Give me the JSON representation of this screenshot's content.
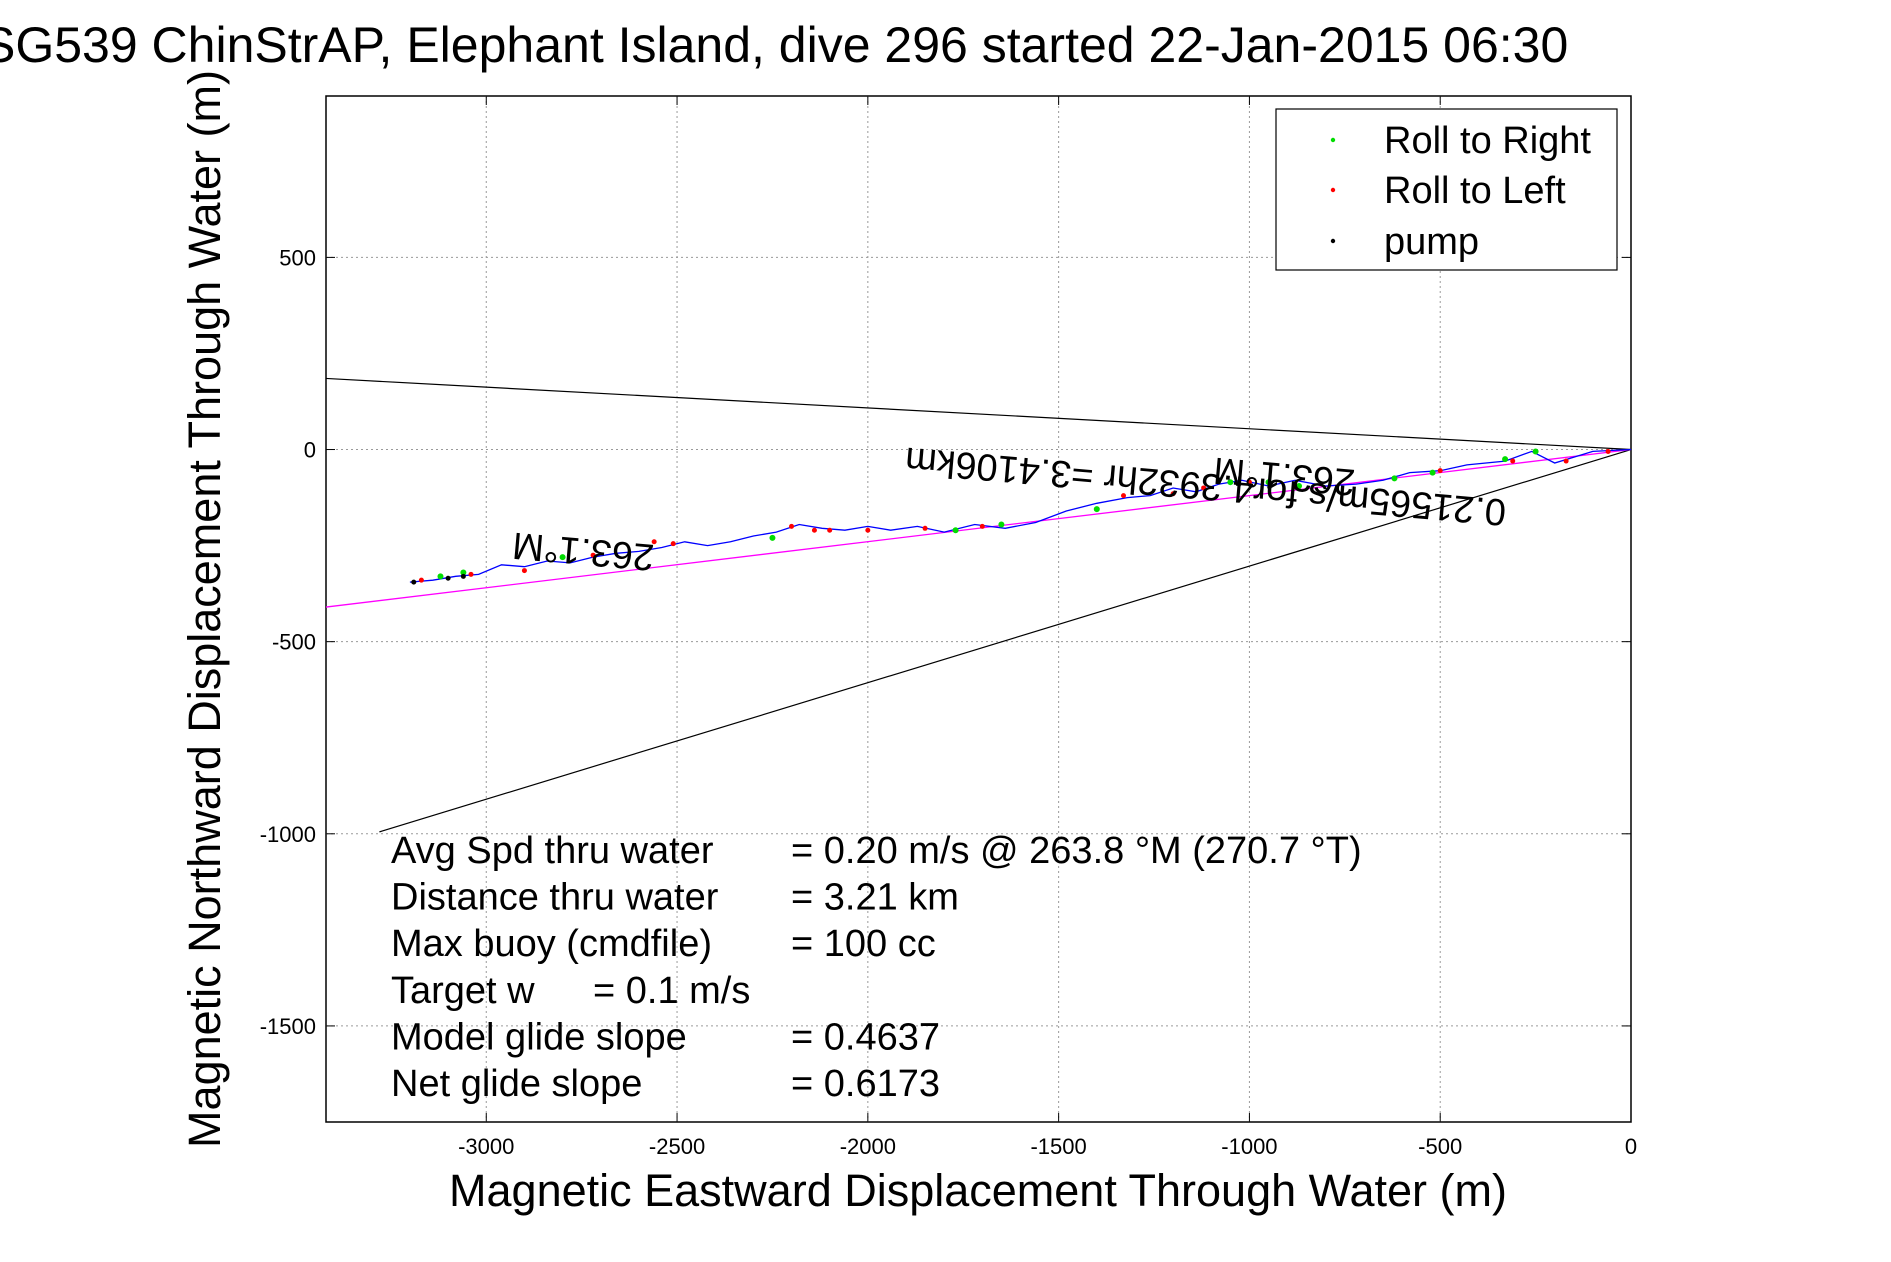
{
  "chart_data": {
    "type": "scatter",
    "title": "SG539 ChinStrAP, Elephant Island, dive 296 started 22-Jan-2015 06:30",
    "xlabel": "Magnetic Eastward Displacement Through Water (m)",
    "ylabel": "Magnetic Northward Displacement Through Water (m)",
    "xlim": [
      -3420,
      0
    ],
    "ylim": [
      -1750,
      920
    ],
    "xticks": [
      -3000,
      -2500,
      -2000,
      -1500,
      -1000,
      -500,
      0
    ],
    "xtick_labels": [
      "-3000",
      "-2500",
      "-2000",
      "-1500",
      "-1000",
      "-500",
      "0"
    ],
    "yticks": [
      500,
      0,
      -500,
      -1000,
      -1500
    ],
    "ytick_labels": [
      "500",
      "0",
      "-500",
      "-1000",
      "-1500"
    ],
    "grid": true,
    "legend_position": "top-right",
    "legend": [
      {
        "label": "Roll to Right",
        "color": "#00dd00"
      },
      {
        "label": "Roll to Left",
        "color": "#ff0000"
      },
      {
        "label": "pump",
        "color": "#000000"
      }
    ],
    "track": {
      "color": "#0000ff",
      "x": [
        0,
        -100,
        -200,
        -260,
        -330,
        -430,
        -500,
        -580,
        -650,
        -720,
        -800,
        -880,
        -950,
        -1020,
        -1080,
        -1140,
        -1200,
        -1260,
        -1320,
        -1400,
        -1480,
        -1560,
        -1640,
        -1720,
        -1800,
        -1870,
        -1940,
        -2000,
        -2060,
        -2120,
        -2180,
        -2240,
        -2300,
        -2360,
        -2420,
        -2480,
        -2540,
        -2600,
        -2660,
        -2720,
        -2780,
        -2840,
        -2900,
        -2960,
        -3020,
        -3080,
        -3140,
        -3200
      ],
      "y": [
        0,
        -5,
        -35,
        -5,
        -30,
        -40,
        -55,
        -60,
        -80,
        -90,
        -95,
        -80,
        -95,
        -80,
        -90,
        -110,
        -100,
        -120,
        -125,
        -140,
        -160,
        -190,
        -205,
        -195,
        -215,
        -200,
        -210,
        -200,
        -210,
        -205,
        -195,
        -215,
        -225,
        -240,
        -250,
        -240,
        -255,
        -265,
        -270,
        -280,
        -295,
        -290,
        -305,
        -300,
        -325,
        -330,
        -340,
        -345
      ]
    },
    "roll_right_points": {
      "x": [
        -250,
        -330,
        -520,
        -620,
        -870,
        -950,
        -1050,
        -1400,
        -1650,
        -1770,
        -2250,
        -2800,
        -3060,
        -3120
      ],
      "y": [
        -5,
        -25,
        -60,
        -75,
        -95,
        -85,
        -85,
        -155,
        -195,
        -210,
        -230,
        -280,
        -320,
        -330
      ]
    },
    "roll_left_points": {
      "x": [
        -60,
        -170,
        -310,
        -500,
        -1000,
        -1120,
        -1200,
        -1330,
        -1700,
        -1850,
        -2000,
        -2100,
        -2140,
        -2200,
        -2510,
        -2560,
        -2720,
        -2900,
        -3040,
        -3170
      ],
      "y": [
        -5,
        -30,
        -30,
        -55,
        -85,
        -100,
        -115,
        -120,
        -200,
        -205,
        -210,
        -210,
        -210,
        -200,
        -245,
        -240,
        -275,
        -315,
        -325,
        -340
      ]
    },
    "pump_points": {
      "x": [
        -3190,
        -3100,
        -3060
      ],
      "y": [
        -345,
        -335,
        -330
      ]
    },
    "heading_line": {
      "color": "#ff00ff",
      "x": [
        0,
        -3420
      ],
      "y": [
        0,
        -410
      ]
    },
    "envelope_lines": {
      "color": "#000000",
      "upper": {
        "x": [
          0,
          -3420
        ],
        "y": [
          0,
          185
        ]
      },
      "lower": {
        "x": [
          0,
          -3280
        ],
        "y": [
          0,
          -995
        ]
      }
    },
    "annotations": {
      "heading_upper_right": "263.1°M",
      "heading_mid_left": "263.1°M",
      "speed_line": "0.21565m/s for4.3932hr =3.4106km",
      "stats": [
        {
          "label": "Avg Spd thru water",
          "value": "=  0.20 m/s @ 263.8 °M (270.7 °T)"
        },
        {
          "label": "Distance thru water",
          "value": "=  3.21 km"
        },
        {
          "label": "Max buoy (cmdfile)",
          "value": "= 100 cc"
        },
        {
          "label": "Target w",
          "value": "= 0.1 m/s"
        },
        {
          "label": "Model glide slope",
          "value": "= 0.4637"
        },
        {
          "label": "Net glide slope",
          "value": "= 0.6173"
        }
      ]
    }
  }
}
